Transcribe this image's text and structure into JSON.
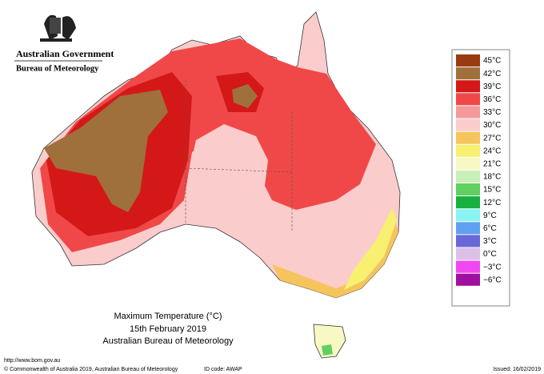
{
  "header": {
    "government": "Australian Government",
    "bureau": "Bureau of Meteorology"
  },
  "title": {
    "line1": "Maximum Temperature (°C)",
    "line2": "15th February 2019",
    "line3": "Australian Bureau of Meteorology"
  },
  "footer": {
    "url": "http://www.bom.gov.au",
    "copyright": "© Commonwealth of Australia 2019, Australian Bureau of Meteorology",
    "id_code": "ID code: AWAP",
    "issued": "Issued: 16/02/2019"
  },
  "legend": [
    {
      "label": "45°C",
      "color": "#9a3a10"
    },
    {
      "label": "42°C",
      "color": "#a0703c"
    },
    {
      "label": "39°C",
      "color": "#d41818"
    },
    {
      "label": "36°C",
      "color": "#f04848"
    },
    {
      "label": "33°C",
      "color": "#f59a9a"
    },
    {
      "label": "30°C",
      "color": "#fbcccc"
    },
    {
      "label": "27°C",
      "color": "#f6c45c"
    },
    {
      "label": "24°C",
      "color": "#f8f070"
    },
    {
      "label": "21°C",
      "color": "#f8f8c4"
    },
    {
      "label": "18°C",
      "color": "#c8f0b8"
    },
    {
      "label": "15°C",
      "color": "#60d060"
    },
    {
      "label": "12°C",
      "color": "#18b040"
    },
    {
      "label": "9°C",
      "color": "#88f4f4"
    },
    {
      "label": "6°C",
      "color": "#60a0f0"
    },
    {
      "label": "3°C",
      "color": "#6868d8"
    },
    {
      "label": "0°C",
      "color": "#dcc0e8"
    },
    {
      "label": "−3°C",
      "color": "#f048f0"
    },
    {
      "label": "−6°C",
      "color": "#a010a0"
    }
  ]
}
